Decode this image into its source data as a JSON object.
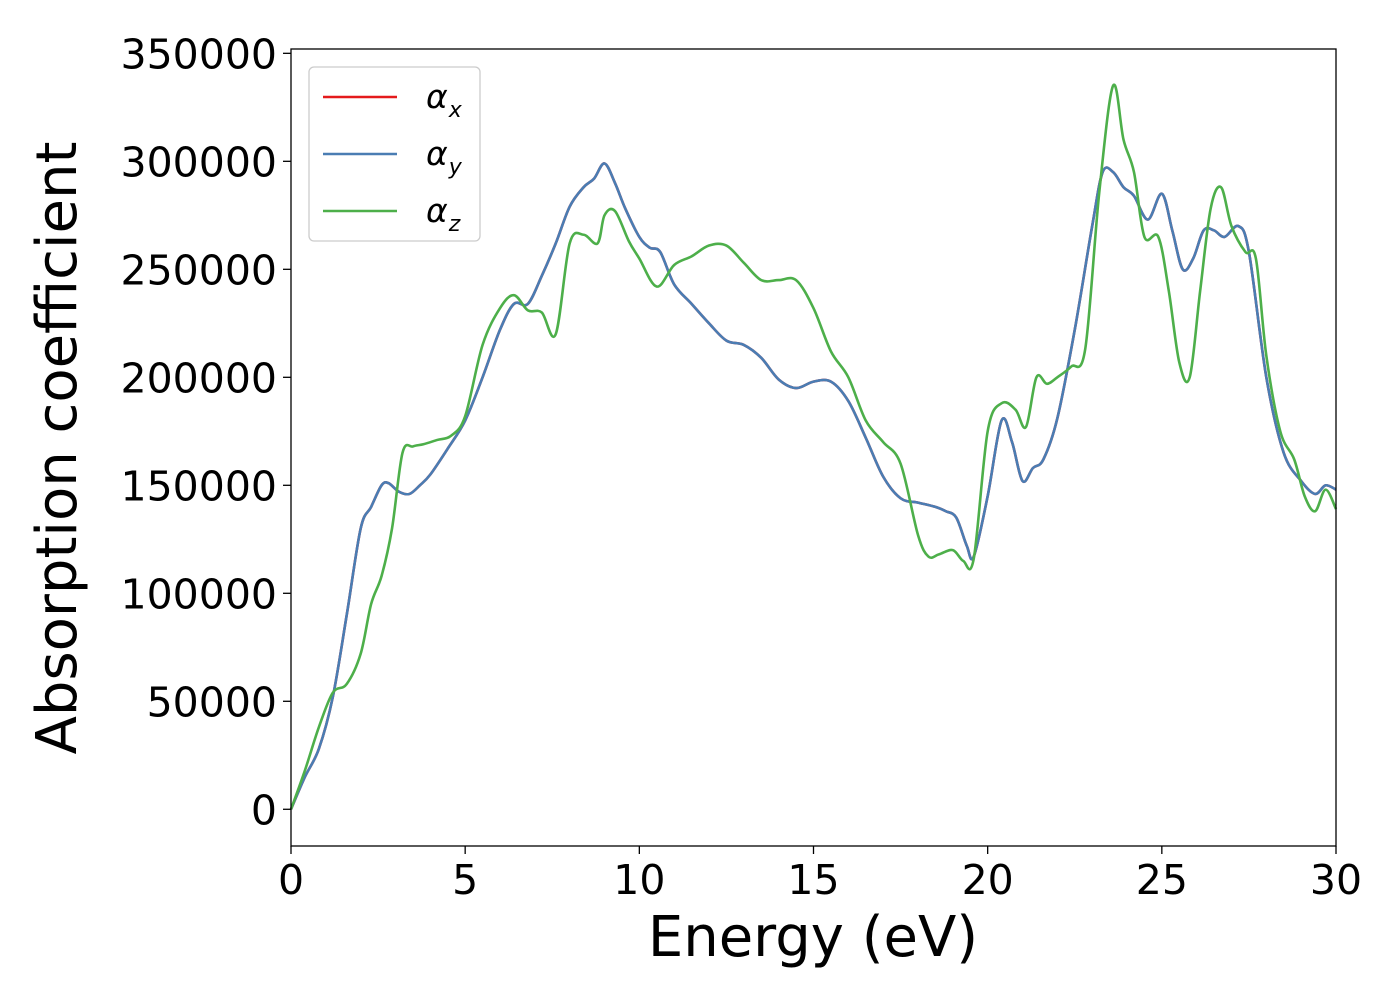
{
  "chart_data": {
    "type": "line",
    "title": "",
    "xlabel": "Energy (eV)",
    "ylabel": "Absorption coefficient",
    "xlim": [
      0,
      30
    ],
    "ylim": [
      -17000,
      352000
    ],
    "x_ticks": [
      0,
      5,
      10,
      15,
      20,
      25,
      30
    ],
    "y_ticks": [
      0,
      50000,
      100000,
      150000,
      200000,
      250000,
      300000,
      350000
    ],
    "grid": false,
    "legend_position": "top-left",
    "series": [
      {
        "name": "α_x",
        "label_base": "α",
        "label_sub": "x",
        "color": "#e41a1c",
        "x": [
          0,
          0.4,
          0.8,
          1.2,
          1.6,
          2.0,
          2.3,
          2.6,
          2.8,
          3.1,
          3.4,
          3.7,
          4.0,
          4.5,
          5.0,
          5.5,
          6.0,
          6.4,
          6.8,
          7.2,
          7.6,
          8.0,
          8.4,
          8.7,
          9.0,
          9.3,
          9.6,
          10.0,
          10.3,
          10.6,
          11.0,
          11.5,
          12.0,
          12.5,
          13.0,
          13.5,
          14.0,
          14.5,
          15.0,
          15.5,
          16.0,
          16.5,
          17.0,
          17.5,
          18.0,
          18.5,
          18.8,
          19.1,
          19.4,
          19.6,
          20.0,
          20.4,
          20.7,
          21.0,
          21.3,
          21.6,
          22.0,
          22.5,
          23.0,
          23.3,
          23.6,
          23.9,
          24.2,
          24.6,
          25.0,
          25.3,
          25.6,
          25.9,
          26.2,
          26.5,
          26.8,
          27.2,
          27.5,
          28.0,
          28.5,
          29.0,
          29.4,
          29.7,
          30.0
        ],
        "y": [
          0,
          15000,
          28000,
          52000,
          90000,
          130000,
          140000,
          150000,
          151000,
          147000,
          146000,
          150000,
          155000,
          167000,
          180000,
          200000,
          222000,
          234000,
          234000,
          247000,
          262000,
          279000,
          288000,
          292000,
          299000,
          290000,
          278000,
          265000,
          260000,
          258000,
          243000,
          234000,
          225000,
          217000,
          215000,
          209000,
          199000,
          195000,
          198000,
          198000,
          189000,
          172000,
          154000,
          144000,
          142000,
          140000,
          138000,
          135000,
          122000,
          117000,
          145000,
          180000,
          170000,
          152000,
          158000,
          162000,
          181000,
          222000,
          270000,
          295000,
          295000,
          288000,
          284000,
          273000,
          285000,
          268000,
          250000,
          255000,
          268000,
          268000,
          265000,
          270000,
          258000,
          200000,
          165000,
          152000,
          146000,
          150000,
          148000
        ]
      },
      {
        "name": "α_y",
        "label_base": "α",
        "label_sub": "y",
        "color": "#4a7db3",
        "x": [
          0,
          0.4,
          0.8,
          1.2,
          1.6,
          2.0,
          2.3,
          2.6,
          2.8,
          3.1,
          3.4,
          3.7,
          4.0,
          4.5,
          5.0,
          5.5,
          6.0,
          6.4,
          6.8,
          7.2,
          7.6,
          8.0,
          8.4,
          8.7,
          9.0,
          9.3,
          9.6,
          10.0,
          10.3,
          10.6,
          11.0,
          11.5,
          12.0,
          12.5,
          13.0,
          13.5,
          14.0,
          14.5,
          15.0,
          15.5,
          16.0,
          16.5,
          17.0,
          17.5,
          18.0,
          18.5,
          18.8,
          19.1,
          19.4,
          19.6,
          20.0,
          20.4,
          20.7,
          21.0,
          21.3,
          21.6,
          22.0,
          22.5,
          23.0,
          23.3,
          23.6,
          23.9,
          24.2,
          24.6,
          25.0,
          25.3,
          25.6,
          25.9,
          26.2,
          26.5,
          26.8,
          27.2,
          27.5,
          28.0,
          28.5,
          29.0,
          29.4,
          29.7,
          30.0
        ],
        "y": [
          0,
          15000,
          28000,
          52000,
          90000,
          130000,
          140000,
          150000,
          151000,
          147000,
          146000,
          150000,
          155000,
          167000,
          180000,
          200000,
          222000,
          234000,
          234000,
          247000,
          262000,
          279000,
          288000,
          292000,
          299000,
          290000,
          278000,
          265000,
          260000,
          258000,
          243000,
          234000,
          225000,
          217000,
          215000,
          209000,
          199000,
          195000,
          198000,
          198000,
          189000,
          172000,
          154000,
          144000,
          142000,
          140000,
          138000,
          135000,
          122000,
          117000,
          145000,
          180000,
          170000,
          152000,
          158000,
          162000,
          181000,
          222000,
          270000,
          295000,
          295000,
          288000,
          284000,
          273000,
          285000,
          268000,
          250000,
          255000,
          268000,
          268000,
          265000,
          270000,
          258000,
          200000,
          165000,
          152000,
          146000,
          150000,
          148000
        ]
      },
      {
        "name": "α_z",
        "label_base": "α",
        "label_sub": "z",
        "color": "#4daf4a",
        "x": [
          0,
          0.4,
          0.8,
          1.2,
          1.6,
          2.0,
          2.3,
          2.6,
          2.9,
          3.2,
          3.5,
          3.8,
          4.2,
          4.6,
          5.0,
          5.5,
          6.0,
          6.4,
          6.8,
          7.2,
          7.6,
          8.0,
          8.4,
          8.8,
          9.0,
          9.3,
          9.7,
          10.0,
          10.5,
          11.0,
          11.5,
          12.0,
          12.5,
          13.0,
          13.5,
          14.0,
          14.5,
          15.0,
          15.5,
          16.0,
          16.5,
          17.0,
          17.5,
          18.0,
          18.3,
          18.6,
          19.0,
          19.3,
          19.6,
          20.0,
          20.4,
          20.8,
          21.1,
          21.4,
          21.7,
          22.0,
          22.4,
          22.8,
          23.2,
          23.6,
          23.9,
          24.2,
          24.5,
          24.9,
          25.2,
          25.5,
          25.8,
          26.1,
          26.4,
          26.7,
          27.0,
          27.4,
          27.7,
          28.0,
          28.4,
          28.8,
          29.1,
          29.4,
          29.7,
          30.0
        ],
        "y": [
          0,
          18000,
          38000,
          54000,
          58000,
          72000,
          95000,
          108000,
          130000,
          165000,
          168000,
          169000,
          171000,
          173000,
          182000,
          215000,
          232000,
          238000,
          231000,
          230000,
          220000,
          262000,
          266000,
          262000,
          275000,
          277000,
          263000,
          255000,
          242000,
          252000,
          256000,
          261000,
          261000,
          253000,
          245000,
          245000,
          245000,
          232000,
          212000,
          200000,
          180000,
          170000,
          160000,
          127000,
          117000,
          118000,
          120000,
          115000,
          116000,
          175000,
          188000,
          185000,
          177000,
          200000,
          197000,
          200000,
          205000,
          213000,
          285000,
          335000,
          310000,
          295000,
          265000,
          265000,
          240000,
          207000,
          200000,
          240000,
          278000,
          288000,
          270000,
          258000,
          255000,
          210000,
          175000,
          162000,
          145000,
          138000,
          148000,
          139000
        ]
      }
    ]
  }
}
